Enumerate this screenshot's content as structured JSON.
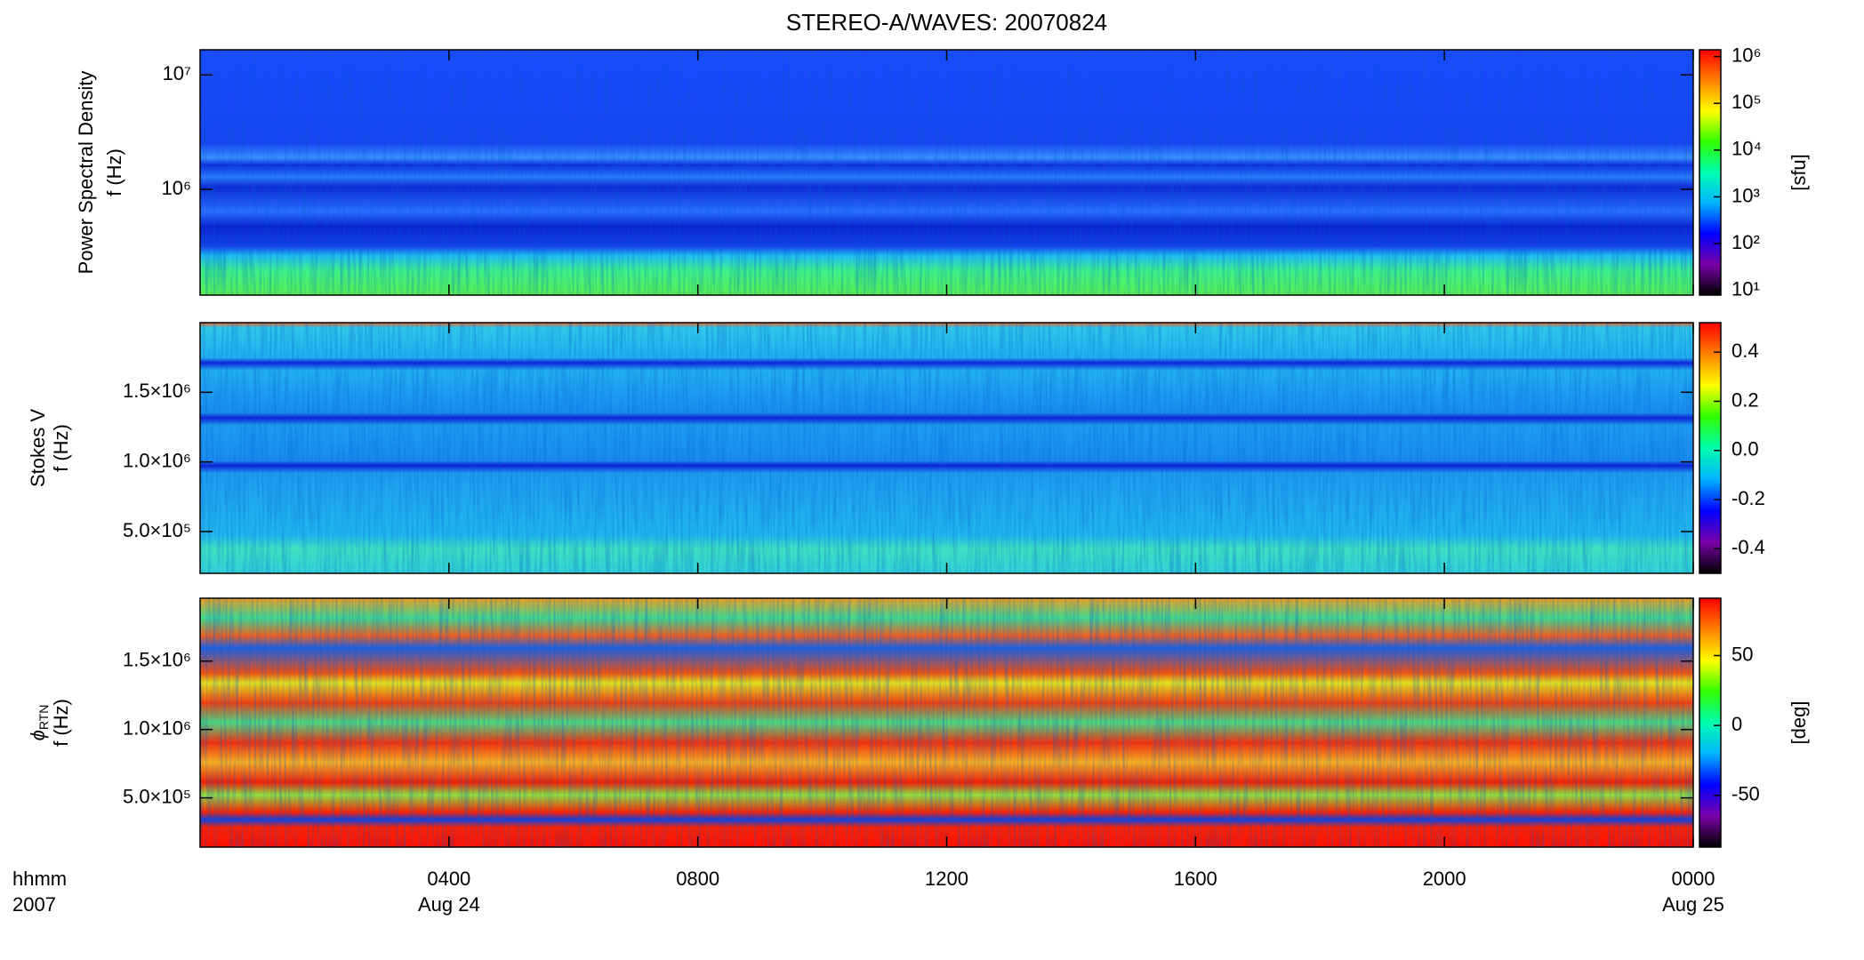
{
  "chart_data": [
    {
      "type": "heatmap",
      "title": "STEREO-A/WAVES: 20070824",
      "ylabel": "Power Spectral Density",
      "ylabel2": "f (Hz)",
      "ylog": true,
      "ylim": [
        119000,
        16600000
      ],
      "yticks": [
        {
          "value": 1000000,
          "label": "10⁶"
        },
        {
          "value": 10000000,
          "label": "10⁷"
        }
      ],
      "colorbar": {
        "label": "[sfu]",
        "log": true,
        "lim": [
          7.9,
          1400000
        ],
        "ticks": [
          {
            "value": 10,
            "label": "10¹"
          },
          {
            "value": 100,
            "label": "10²"
          },
          {
            "value": 1000,
            "label": "10³"
          },
          {
            "value": 10000,
            "label": "10⁴"
          },
          {
            "value": 100000,
            "label": "10⁵"
          },
          {
            "value": 1000000,
            "label": "10⁶"
          }
        ],
        "colormap": [
          "#000000",
          "#7a00a8",
          "#0000ff",
          "#00b4ff",
          "#00ffb0",
          "#30ff00",
          "#ffff00",
          "#ff8000",
          "#ff0000"
        ]
      }
    },
    {
      "type": "heatmap",
      "ylabel": "Stokes V",
      "ylabel2": "f (Hz)",
      "ylog": false,
      "ylim": [
        200000,
        2000000
      ],
      "yticks": [
        {
          "value": 500000,
          "label": "5.0×10⁵"
        },
        {
          "value": 1000000,
          "label": "1.0×10⁶"
        },
        {
          "value": 1500000,
          "label": "1.5×10⁶"
        }
      ],
      "colorbar": {
        "log": false,
        "lim": [
          -0.5,
          0.52
        ],
        "ticks": [
          -0.4,
          -0.2,
          {
            "value": 0,
            "label": "0.0"
          },
          0.2,
          0.4
        ],
        "colormap": [
          "#000000",
          "#7a00a8",
          "#0000ff",
          "#00b4ff",
          "#00ffb0",
          "#30ff00",
          "#ffff00",
          "#ff8000",
          "#ff0000"
        ]
      }
    },
    {
      "type": "heatmap",
      "ylabel": "ϕ",
      "ylabel_sub": "RTN",
      "ylabel2": "f (Hz)",
      "ylog": false,
      "ylim": [
        140000,
        1960000
      ],
      "yticks": [
        {
          "value": 500000,
          "label": "5.0×10⁵"
        },
        {
          "value": 1000000,
          "label": "1.0×10⁶"
        },
        {
          "value": 1500000,
          "label": "1.5×10⁶"
        }
      ],
      "colorbar": {
        "label": "[deg]",
        "log": false,
        "lim": [
          -87,
          91
        ],
        "ticks": [
          -50,
          0,
          50
        ],
        "colormap": [
          "#000000",
          "#7a00a8",
          "#0000ff",
          "#00b4ff",
          "#00ffb0",
          "#30ff00",
          "#ffff00",
          "#ff8000",
          "#ff0000"
        ]
      },
      "xlabel": "hhmm",
      "xlabel2": "2007",
      "xlim": [
        0,
        24
      ],
      "xticks": [
        {
          "value": 4,
          "label": "0400"
        },
        {
          "value": 8,
          "label": "0800"
        },
        {
          "value": 12,
          "label": "1200"
        },
        {
          "value": 16,
          "label": "1600"
        },
        {
          "value": 20,
          "label": "2000"
        },
        {
          "value": 24,
          "label": "0000"
        }
      ],
      "xtick_dates": [
        {
          "value": 4,
          "label": "Aug 24"
        },
        {
          "value": 24,
          "label": "Aug 25"
        }
      ]
    }
  ]
}
